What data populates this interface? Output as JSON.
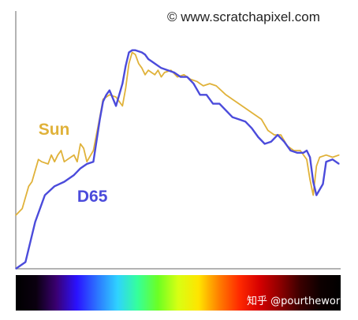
{
  "credit": "© www.scratchapixel.com",
  "footer_credit": "知乎 @pourtheworld",
  "colors": {
    "sun": "#e0b23a",
    "d65": "#4b4bdb",
    "axis": "#9a9a9a",
    "background": "#ffffff"
  },
  "spectrum_strip": {
    "stops": [
      "#000000",
      "#0b0010",
      "#3a0072",
      "#2a12ff",
      "#2c74ff",
      "#2fd2ff",
      "#35ff9a",
      "#6cff23",
      "#d8ff13",
      "#ffe400",
      "#ff7f00",
      "#ff2a00",
      "#d60000",
      "#8e0000",
      "#3b0000",
      "#0d0000",
      "#000000"
    ]
  },
  "chart_data": {
    "type": "line",
    "title": "",
    "xlabel": "",
    "ylabel": "",
    "xlim": [
      0,
      100
    ],
    "ylim": [
      0,
      100
    ],
    "grid": false,
    "legend": "inline labels",
    "series": [
      {
        "name": "Sun",
        "color": "#e0b23a",
        "x": [
          0,
          2,
          4,
          5,
          6,
          7,
          8,
          10,
          11,
          12,
          13,
          14,
          15,
          16,
          17,
          18,
          19,
          20,
          21,
          22,
          24,
          26,
          27,
          28,
          29,
          31,
          33,
          34,
          35,
          36,
          37,
          38,
          39,
          40,
          41,
          42,
          43,
          44,
          45,
          46,
          48,
          50,
          52,
          54,
          56,
          58,
          60,
          62,
          65,
          68,
          71,
          74,
          76,
          78,
          80,
          82,
          84,
          86,
          88,
          90,
          91,
          92,
          93,
          94,
          96,
          98,
          100
        ],
        "y": [
          24,
          27,
          37,
          39,
          44,
          49,
          48,
          47,
          51,
          48,
          51,
          53,
          48,
          49,
          50,
          51,
          48,
          56,
          54,
          48,
          53,
          68,
          76,
          77,
          78,
          77,
          73,
          81,
          92,
          97,
          96,
          92,
          90,
          87,
          89,
          88,
          87,
          89,
          86,
          88,
          89,
          86,
          87,
          85,
          84,
          82,
          83,
          82,
          78,
          75,
          72,
          69,
          67,
          62,
          60,
          60,
          55,
          53,
          53,
          49,
          40,
          33,
          46,
          50,
          51,
          50,
          51
        ]
      },
      {
        "name": "D65",
        "color": "#4b4bdb",
        "x": [
          0,
          3,
          6,
          9,
          12,
          15,
          18,
          20,
          22,
          24,
          26,
          27,
          28,
          29,
          31,
          33,
          34,
          35,
          36,
          37,
          39,
          40,
          41,
          42,
          43,
          45,
          47,
          49,
          51,
          53,
          55,
          57,
          59,
          61,
          63,
          65,
          67,
          69,
          71,
          73,
          75,
          77,
          79,
          81,
          83,
          85,
          87,
          89,
          90,
          91,
          92,
          93,
          95,
          96,
          98,
          100
        ],
        "y": [
          0,
          3,
          21,
          33,
          37,
          39,
          42,
          45,
          47,
          48,
          67,
          75,
          78,
          80,
          73,
          83,
          91,
          97,
          98,
          98,
          97,
          96,
          94,
          93,
          92,
          90,
          89,
          88,
          86,
          86,
          83,
          78,
          78,
          74,
          74,
          71,
          68,
          67,
          66,
          63,
          59,
          56,
          57,
          60,
          57,
          53,
          52,
          52,
          53,
          50,
          39,
          33,
          38,
          48,
          49,
          47
        ]
      }
    ],
    "annotations": [
      {
        "text": "Sun",
        "x": 7,
        "y": 60,
        "color": "#e0b23a"
      },
      {
        "text": "D65",
        "x": 19,
        "y": 30,
        "color": "#4b4bdb"
      }
    ]
  }
}
